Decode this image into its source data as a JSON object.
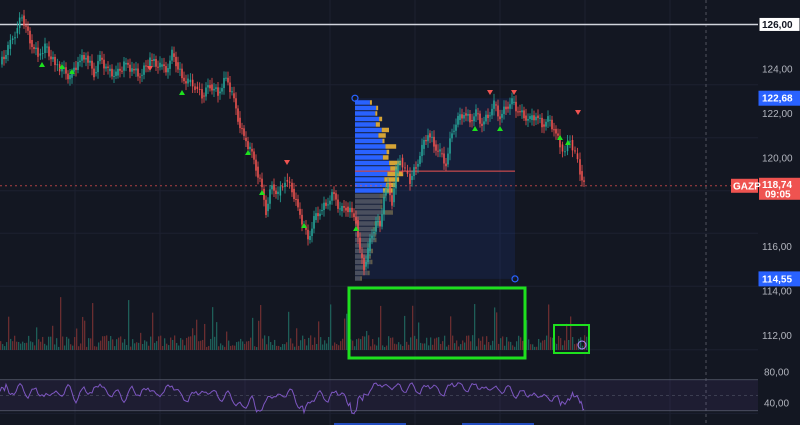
{
  "chart_data": [
    {
      "type": "candlestick",
      "ticker": "GAZP",
      "time_label": "09:05",
      "y_axis_ticks": [
        "124,00",
        "122,00",
        "120,00",
        "116,00",
        "114,00",
        "112,00"
      ],
      "y_axis_ticks_values": [
        124,
        122,
        120,
        116,
        114,
        112
      ],
      "ylim": [
        110.9,
        127.1
      ],
      "horizontal_line": {
        "value": 126.0,
        "label": "126,00"
      },
      "current_price": {
        "value": 118.74,
        "label": "118,74"
      },
      "range_top": {
        "value": 122.68,
        "label": "122,68"
      },
      "range_bottom": {
        "value": 114.55,
        "label": "114,55"
      },
      "point_of_control": 119.4,
      "close_path": [
        [
          0,
          124.2
        ],
        [
          8,
          124.9
        ],
        [
          15,
          125.6
        ],
        [
          22,
          126.4
        ],
        [
          30,
          125.3
        ],
        [
          38,
          124.6
        ],
        [
          45,
          125.0
        ],
        [
          55,
          124.2
        ],
        [
          62,
          124.0
        ],
        [
          70,
          123.6
        ],
        [
          78,
          124.3
        ],
        [
          86,
          124.6
        ],
        [
          94,
          123.8
        ],
        [
          100,
          124.5
        ],
        [
          108,
          123.9
        ],
        [
          116,
          123.7
        ],
        [
          124,
          124.2
        ],
        [
          132,
          124.0
        ],
        [
          140,
          123.7
        ],
        [
          150,
          124.4
        ],
        [
          160,
          124.1
        ],
        [
          168,
          124.0
        ],
        [
          172,
          124.7
        ],
        [
          176,
          124.3
        ],
        [
          182,
          123.6
        ],
        [
          188,
          123.4
        ],
        [
          195,
          123.2
        ],
        [
          202,
          122.8
        ],
        [
          210,
          123.3
        ],
        [
          218,
          122.9
        ],
        [
          226,
          123.6
        ],
        [
          232,
          122.9
        ],
        [
          238,
          121.8
        ],
        [
          244,
          120.9
        ],
        [
          250,
          120.4
        ],
        [
          256,
          119.6
        ],
        [
          262,
          118.6
        ],
        [
          266,
          117.6
        ],
        [
          272,
          118.8
        ],
        [
          278,
          118.3
        ],
        [
          285,
          119.0
        ],
        [
          292,
          118.6
        ],
        [
          298,
          117.7
        ],
        [
          304,
          116.9
        ],
        [
          308,
          116.3
        ],
        [
          314,
          117.2
        ],
        [
          320,
          117.6
        ],
        [
          326,
          117.9
        ],
        [
          334,
          118.4
        ],
        [
          340,
          117.6
        ],
        [
          346,
          117.8
        ],
        [
          352,
          117.5
        ],
        [
          356,
          117.2
        ],
        [
          360,
          115.7
        ],
        [
          364,
          115.1
        ],
        [
          368,
          115.8
        ],
        [
          372,
          116.6
        ],
        [
          376,
          117.1
        ],
        [
          380,
          116.9
        ],
        [
          384,
          118.3
        ],
        [
          388,
          118.7
        ],
        [
          392,
          118.0
        ],
        [
          396,
          119.3
        ],
        [
          400,
          120.0
        ],
        [
          405,
          119.4
        ],
        [
          410,
          119.0
        ],
        [
          416,
          119.6
        ],
        [
          422,
          120.4
        ],
        [
          428,
          121.1
        ],
        [
          434,
          120.6
        ],
        [
          440,
          120.2
        ],
        [
          446,
          119.7
        ],
        [
          452,
          121.2
        ],
        [
          458,
          121.7
        ],
        [
          464,
          122.0
        ],
        [
          470,
          121.7
        ],
        [
          476,
          122.0
        ],
        [
          482,
          121.5
        ],
        [
          488,
          121.9
        ],
        [
          494,
          122.4
        ],
        [
          500,
          121.8
        ],
        [
          506,
          122.3
        ],
        [
          512,
          122.5
        ],
        [
          518,
          122.1
        ],
        [
          524,
          121.9
        ],
        [
          530,
          121.7
        ],
        [
          536,
          121.9
        ],
        [
          542,
          121.5
        ],
        [
          548,
          121.7
        ],
        [
          554,
          121.3
        ],
        [
          560,
          120.6
        ],
        [
          565,
          120.3
        ],
        [
          570,
          120.8
        ],
        [
          575,
          120.2
        ],
        [
          580,
          119.4
        ],
        [
          584,
          118.74
        ]
      ],
      "series": [
        {
          "name": "Price",
          "up_color": "#26a69a",
          "down_color": "#ef5350"
        },
        {
          "name": "Volume"
        }
      ]
    },
    {
      "type": "line",
      "series": [
        {
          "name": "RSI",
          "color": "#7e57c2"
        }
      ],
      "y_axis_ticks": [
        "80,00",
        "40,00"
      ],
      "y_axis_ticks_values": [
        80,
        40
      ],
      "ylim": [
        18,
        102
      ],
      "band": [
        70,
        30
      ],
      "rsi_path": [
        [
          0,
          55
        ],
        [
          6,
          60
        ],
        [
          12,
          52
        ],
        [
          20,
          62
        ],
        [
          28,
          50
        ],
        [
          36,
          58
        ],
        [
          44,
          46
        ],
        [
          52,
          56
        ],
        [
          60,
          48
        ],
        [
          68,
          62
        ],
        [
          76,
          44
        ],
        [
          84,
          58
        ],
        [
          92,
          52
        ],
        [
          100,
          68
        ],
        [
          108,
          48
        ],
        [
          116,
          56
        ],
        [
          124,
          44
        ],
        [
          132,
          58
        ],
        [
          140,
          50
        ],
        [
          148,
          62
        ],
        [
          156,
          48
        ],
        [
          164,
          56
        ],
        [
          172,
          64
        ],
        [
          180,
          50
        ],
        [
          188,
          44
        ],
        [
          196,
          56
        ],
        [
          204,
          50
        ],
        [
          212,
          58
        ],
        [
          220,
          44
        ],
        [
          228,
          52
        ],
        [
          236,
          40
        ],
        [
          244,
          34
        ],
        [
          252,
          46
        ],
        [
          258,
          28
        ],
        [
          266,
          42
        ],
        [
          274,
          52
        ],
        [
          282,
          46
        ],
        [
          290,
          58
        ],
        [
          298,
          38
        ],
        [
          304,
          30
        ],
        [
          312,
          44
        ],
        [
          320,
          52
        ],
        [
          328,
          44
        ],
        [
          336,
          56
        ],
        [
          344,
          48
        ],
        [
          350,
          38
        ],
        [
          354,
          22
        ],
        [
          358,
          44
        ],
        [
          364,
          48
        ],
        [
          372,
          60
        ],
        [
          380,
          66
        ],
        [
          388,
          58
        ],
        [
          396,
          64
        ],
        [
          404,
          56
        ],
        [
          412,
          62
        ],
        [
          420,
          54
        ],
        [
          428,
          64
        ],
        [
          436,
          58
        ],
        [
          444,
          52
        ],
        [
          452,
          66
        ],
        [
          460,
          62
        ],
        [
          468,
          58
        ],
        [
          476,
          64
        ],
        [
          484,
          56
        ],
        [
          492,
          62
        ],
        [
          500,
          54
        ],
        [
          508,
          60
        ],
        [
          516,
          50
        ],
        [
          524,
          54
        ],
        [
          532,
          48
        ],
        [
          540,
          52
        ],
        [
          548,
          44
        ],
        [
          556,
          48
        ],
        [
          562,
          38
        ],
        [
          568,
          46
        ],
        [
          574,
          52
        ],
        [
          580,
          40
        ],
        [
          584,
          32
        ]
      ]
    }
  ],
  "ui": {
    "price_axis_x_start": 758,
    "grid_color": "#1e222d",
    "accent_blue": "#2962ff",
    "highlight_green": "#1ee01e",
    "bg": "#131722"
  }
}
